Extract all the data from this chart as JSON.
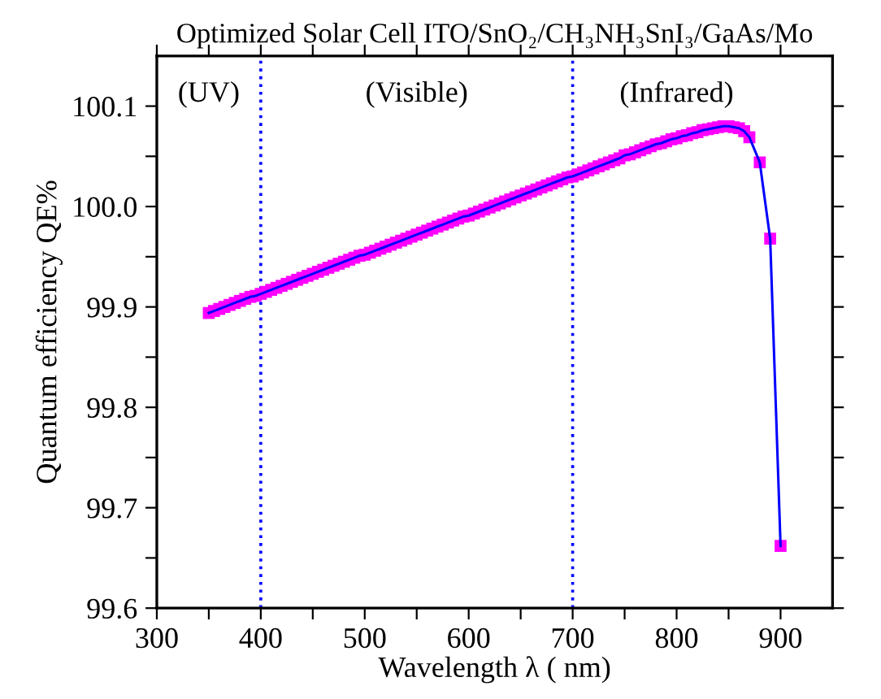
{
  "chart_data": {
    "type": "line",
    "title": "Optimized Solar Cell ITO/SnO₂/CH₃NH₃SnI₃/GaAs/Mo",
    "xlabel": "Wavelength λ ( nm)",
    "ylabel": "Quantum efficiency QE%",
    "x": [
      350,
      355,
      360,
      365,
      370,
      375,
      380,
      385,
      390,
      395,
      400,
      405,
      410,
      415,
      420,
      425,
      430,
      435,
      440,
      445,
      450,
      455,
      460,
      465,
      470,
      475,
      480,
      485,
      490,
      495,
      500,
      505,
      510,
      515,
      520,
      525,
      530,
      535,
      540,
      545,
      550,
      555,
      560,
      565,
      570,
      575,
      580,
      585,
      590,
      595,
      600,
      605,
      610,
      615,
      620,
      625,
      630,
      635,
      640,
      645,
      650,
      655,
      660,
      665,
      670,
      675,
      680,
      685,
      690,
      695,
      700,
      705,
      710,
      715,
      720,
      725,
      730,
      735,
      740,
      745,
      750,
      755,
      760,
      765,
      770,
      775,
      780,
      785,
      790,
      795,
      800,
      805,
      810,
      815,
      820,
      825,
      830,
      835,
      840,
      845,
      850,
      855,
      860,
      865,
      870,
      880,
      890,
      900
    ],
    "series": [
      {
        "color": "#0000ff",
        "marker": "square",
        "line_style": "solid",
        "colors": [
          "#ff00ff",
          "#ff00ff",
          "#ff00ff",
          "#ff00ff",
          "#ff00ff",
          "#ff00ff",
          "#ff00ff",
          "#ff00ff",
          "#ff00ff",
          "#ff00ff",
          "#ff00ff",
          "#ff00ff",
          "#ff00ff",
          "#ff00ff",
          "#ff00ff",
          "#ff00ff",
          "#ff00ff",
          "#ff00ff",
          "#ff00ff",
          "#ff00ff",
          "#ff00ff",
          "#ff00ff",
          "#ff00ff",
          "#ff00ff",
          "#ff00ff",
          "#ff00ff",
          "#ff00ff",
          "#ff00ff",
          "#ff00ff",
          "#ff00ff",
          "#ff00ff",
          "#ff00ff",
          "#ff00ff",
          "#ff00ff",
          "#ff00ff",
          "#ff00ff",
          "#ff00ff",
          "#ff00ff",
          "#ff00ff",
          "#ff00ff",
          "#ff00ff",
          "#ff00ff",
          "#ff00ff",
          "#ff00ff",
          "#ff00ff",
          "#ff00ff",
          "#ff00ff",
          "#ff00ff",
          "#ff00ff",
          "#ff00ff",
          "#ff00ff",
          "#ff00ff",
          "#ff00ff",
          "#ff00ff",
          "#ff00ff",
          "#ff00ff",
          "#ff00ff",
          "#ff00ff",
          "#ff00ff",
          "#ff00ff",
          "#ff00ff",
          "#ff00ff",
          "#ff00ff",
          "#ff00ff",
          "#ff00ff",
          "#ff00ff",
          "#ff00ff",
          "#ff00ff",
          "#ff00ff",
          "#ff00ff",
          "#ff00ff",
          "#ff00ff",
          "#ff00ff",
          "#ff00ff",
          "#ff00ff",
          "#ff00ff",
          "#ff00ff",
          "#ff00ff",
          "#ff00ff",
          "#ff00ff",
          "#ff00ff",
          "#ff00ff",
          "#ff00ff",
          "#ff00ff",
          "#ff00ff",
          "#ff00ff",
          "#ff00ff",
          "#ff00ff",
          "#ff00ff",
          "#ff00ff",
          "#ff00ff",
          "#ff00ff",
          "#ff00ff",
          "#ff00ff",
          "#ff00ff",
          "#ff00ff",
          "#ff00ff",
          "#ff00ff",
          "#ff00ff",
          "#ff00ff",
          "#ff00ff",
          "#ff00ff",
          "#ff00ff",
          "#ff00ff",
          "#ff00ff",
          "#ff00ff",
          "#ff00ff",
          "#ff00ff"
        ],
        "values": [
          99.894,
          99.896,
          99.898,
          99.9,
          99.902,
          99.904,
          99.906,
          99.908,
          99.91,
          99.911,
          99.913,
          99.915,
          99.917,
          99.919,
          99.921,
          99.923,
          99.925,
          99.927,
          99.929,
          99.931,
          99.933,
          99.935,
          99.937,
          99.939,
          99.941,
          99.943,
          99.945,
          99.947,
          99.949,
          99.951,
          99.952,
          99.954,
          99.956,
          99.958,
          99.96,
          99.962,
          99.964,
          99.966,
          99.968,
          99.97,
          99.972,
          99.974,
          99.976,
          99.978,
          99.98,
          99.982,
          99.984,
          99.986,
          99.988,
          99.99,
          99.991,
          99.993,
          99.995,
          99.997,
          99.999,
          100.001,
          100.003,
          100.005,
          100.007,
          100.009,
          100.011,
          100.013,
          100.015,
          100.017,
          100.019,
          100.021,
          100.023,
          100.025,
          100.027,
          100.029,
          100.03,
          100.032,
          100.034,
          100.036,
          100.038,
          100.04,
          100.042,
          100.044,
          100.046,
          100.048,
          100.051,
          100.052,
          100.054,
          100.056,
          100.058,
          100.06,
          100.062,
          100.063,
          100.065,
          100.067,
          100.068,
          100.07,
          100.071,
          100.073,
          100.074,
          100.076,
          100.077,
          100.078,
          100.079,
          100.08,
          100.08,
          100.079,
          100.078,
          100.075,
          100.069,
          100.044,
          99.968,
          99.662
        ]
      }
    ],
    "xlim": [
      300,
      950
    ],
    "xticks": [
      300,
      {
        "value": 350,
        "label": null
      },
      400,
      {
        "value": 450,
        "label": null
      },
      500,
      {
        "value": 550,
        "label": null
      },
      600,
      {
        "value": 650,
        "label": null
      },
      700,
      {
        "value": 750,
        "label": null
      },
      800,
      {
        "value": 850,
        "label": null
      },
      900
    ],
    "ylim": [
      99.6,
      100.15
    ],
    "yticks": [
      99.6,
      {
        "value": 99.65,
        "label": null
      },
      99.7,
      {
        "value": 99.75,
        "label": null
      },
      99.8,
      {
        "value": 99.85,
        "label": null
      },
      99.9,
      {
        "value": 99.95,
        "label": null
      },
      {
        "value": 100,
        "label": "100.0"
      },
      {
        "value": 100.05,
        "label": null
      },
      100.1
    ],
    "ref_lines": [
      {
        "axis": "x",
        "value": 400,
        "color": "#0000ff",
        "line_style": "dotted"
      },
      {
        "axis": "x",
        "value": 700,
        "color": "#0000ff",
        "line_style": "dotted"
      }
    ],
    "annotations": [
      "(UV)",
      "(Visible)",
      "(Infrared)"
    ],
    "grid": false,
    "legend": false
  }
}
